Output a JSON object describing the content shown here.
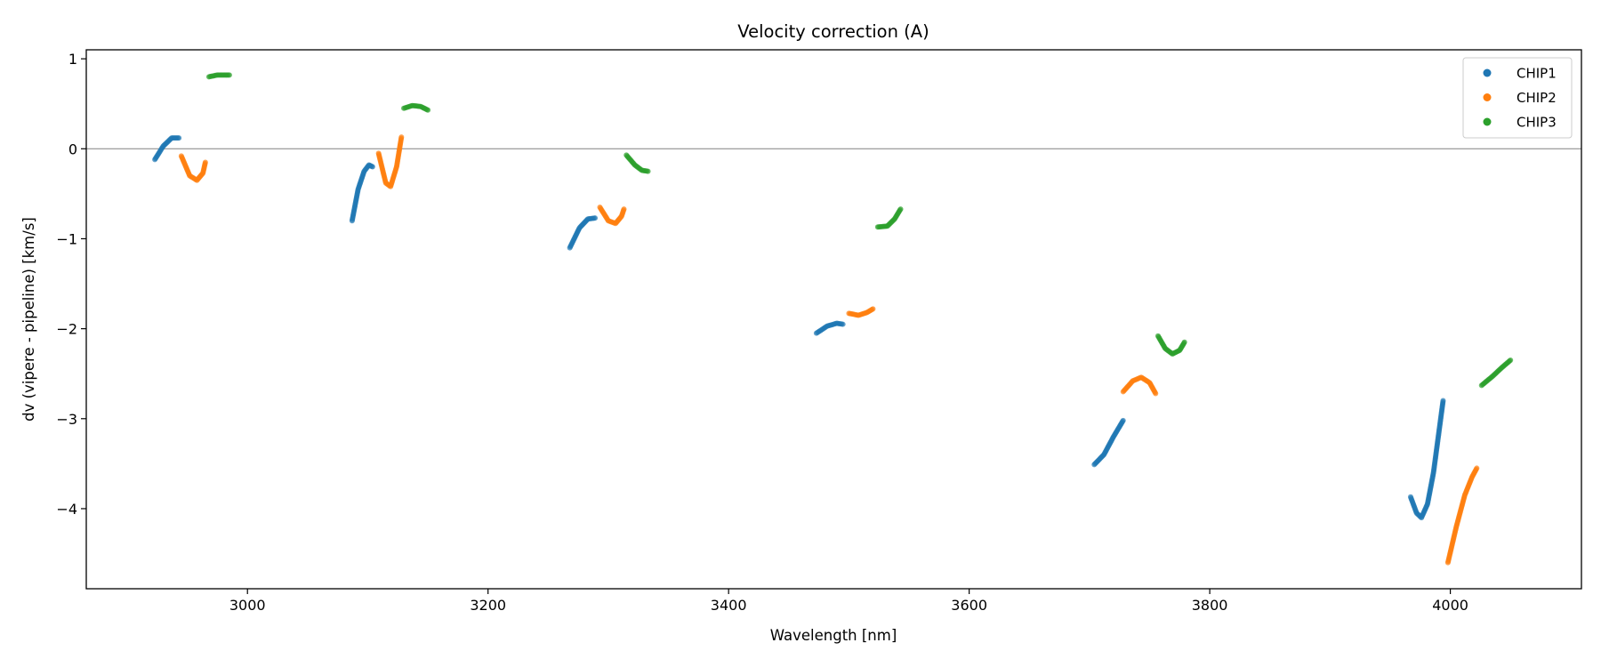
{
  "chart_data": {
    "type": "scatter",
    "title": "Velocity correction (A)",
    "xlabel": "Wavelength [nm]",
    "ylabel": "dv (vipere - pipeline) [km/s]",
    "xlim": [
      2866,
      4109
    ],
    "ylim": [
      -4.89,
      1.1
    ],
    "xticks": [
      3000,
      3200,
      3400,
      3600,
      3800,
      4000
    ],
    "yticks": [
      1,
      0,
      -1,
      -2,
      -3,
      -4
    ],
    "xtick_labels": [
      "3000",
      "3200",
      "3400",
      "3600",
      "3800",
      "4000"
    ],
    "ytick_labels": [
      "1",
      "0",
      "−1",
      "−2",
      "−3",
      "−4"
    ],
    "hline": 0,
    "legend": {
      "placement": "top-right",
      "entries": [
        "CHIP1",
        "CHIP2",
        "CHIP3"
      ]
    },
    "series": [
      {
        "name": "CHIP1",
        "color": "#1f77b4",
        "segments": [
          [
            [
              2923,
              -0.12
            ],
            [
              2930,
              0.03
            ],
            [
              2937,
              0.12
            ],
            [
              2943,
              0.12
            ]
          ],
          [
            [
              3087,
              -0.8
            ],
            [
              3092,
              -0.45
            ],
            [
              3097,
              -0.25
            ],
            [
              3101,
              -0.18
            ],
            [
              3104,
              -0.2
            ]
          ],
          [
            [
              3268,
              -1.1
            ],
            [
              3276,
              -0.88
            ],
            [
              3283,
              -0.78
            ],
            [
              3289,
              -0.77
            ]
          ],
          [
            [
              3473,
              -2.05
            ],
            [
              3482,
              -1.97
            ],
            [
              3490,
              -1.94
            ],
            [
              3495,
              -1.95
            ]
          ],
          [
            [
              3704,
              -3.51
            ],
            [
              3712,
              -3.4
            ],
            [
              3720,
              -3.2
            ],
            [
              3728,
              -3.02
            ]
          ],
          [
            [
              3967,
              -3.87
            ],
            [
              3972,
              -4.05
            ],
            [
              3976,
              -4.1
            ],
            [
              3981,
              -3.95
            ],
            [
              3986,
              -3.6
            ],
            [
              3990,
              -3.2
            ],
            [
              3994,
              -2.8
            ]
          ]
        ]
      },
      {
        "name": "CHIP2",
        "color": "#ff7f0e",
        "segments": [
          [
            [
              2945,
              -0.08
            ],
            [
              2952,
              -0.3
            ],
            [
              2958,
              -0.35
            ],
            [
              2963,
              -0.27
            ],
            [
              2965,
              -0.15
            ]
          ],
          [
            [
              3109,
              -0.05
            ],
            [
              3115,
              -0.38
            ],
            [
              3119,
              -0.42
            ],
            [
              3124,
              -0.2
            ],
            [
              3128,
              0.13
            ]
          ],
          [
            [
              3293,
              -0.65
            ],
            [
              3300,
              -0.8
            ],
            [
              3306,
              -0.83
            ],
            [
              3311,
              -0.75
            ],
            [
              3313,
              -0.67
            ]
          ],
          [
            [
              3500,
              -1.83
            ],
            [
              3508,
              -1.85
            ],
            [
              3515,
              -1.82
            ],
            [
              3520,
              -1.78
            ]
          ],
          [
            [
              3728,
              -2.7
            ],
            [
              3736,
              -2.58
            ],
            [
              3743,
              -2.54
            ],
            [
              3750,
              -2.6
            ],
            [
              3755,
              -2.72
            ]
          ],
          [
            [
              3998,
              -4.6
            ],
            [
              4005,
              -4.2
            ],
            [
              4012,
              -3.85
            ],
            [
              4018,
              -3.65
            ],
            [
              4022,
              -3.55
            ]
          ]
        ]
      },
      {
        "name": "CHIP3",
        "color": "#2ca02c",
        "segments": [
          [
            [
              2968,
              0.8
            ],
            [
              2975,
              0.82
            ],
            [
              2985,
              0.82
            ]
          ],
          [
            [
              3130,
              0.45
            ],
            [
              3137,
              0.48
            ],
            [
              3144,
              0.47
            ],
            [
              3150,
              0.43
            ]
          ],
          [
            [
              3315,
              -0.07
            ],
            [
              3322,
              -0.18
            ],
            [
              3328,
              -0.24
            ],
            [
              3333,
              -0.25
            ]
          ],
          [
            [
              3524,
              -0.87
            ],
            [
              3532,
              -0.86
            ],
            [
              3538,
              -0.78
            ],
            [
              3543,
              -0.67
            ]
          ],
          [
            [
              3757,
              -2.08
            ],
            [
              3763,
              -2.22
            ],
            [
              3769,
              -2.28
            ],
            [
              3775,
              -2.24
            ],
            [
              3779,
              -2.15
            ]
          ],
          [
            [
              4026,
              -2.63
            ],
            [
              4035,
              -2.53
            ],
            [
              4043,
              -2.43
            ],
            [
              4050,
              -2.35
            ]
          ]
        ]
      }
    ]
  }
}
